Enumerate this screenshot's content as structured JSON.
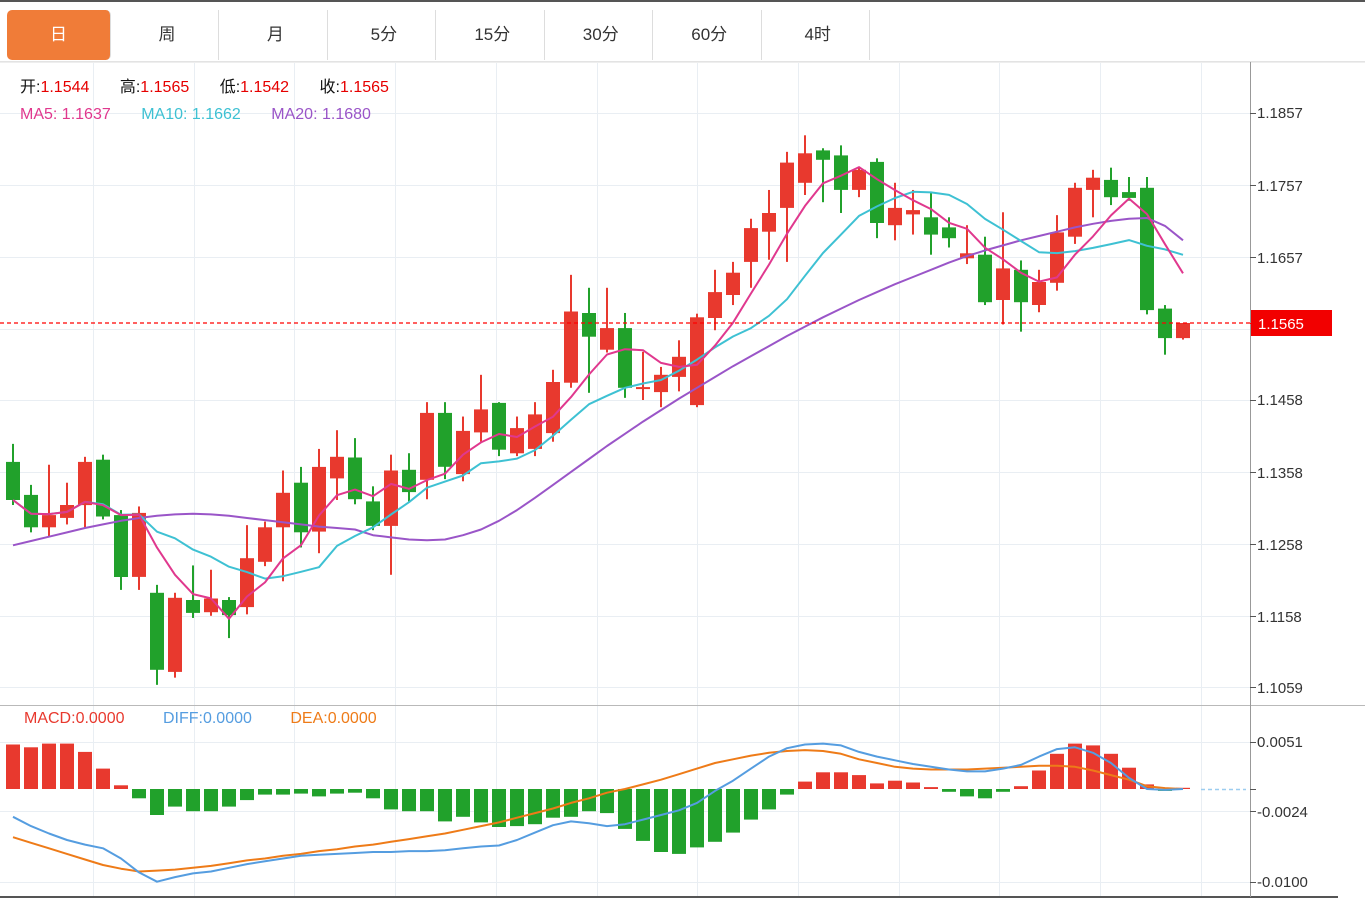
{
  "tabs": {
    "items": [
      {
        "label": "日",
        "active": true
      },
      {
        "label": "周",
        "active": false
      },
      {
        "label": "月",
        "active": false
      },
      {
        "label": "5分",
        "active": false
      },
      {
        "label": "15分",
        "active": false
      },
      {
        "label": "30分",
        "active": false
      },
      {
        "label": "60分",
        "active": false
      },
      {
        "label": "4时",
        "active": false
      }
    ]
  },
  "main_chart": {
    "legend_ohlc": {
      "open_label": "开:",
      "open": "1.1544",
      "high_label": "高:",
      "high": "1.1565",
      "low_label": "低:",
      "low": "1.1542",
      "close_label": "收:",
      "close": "1.1565"
    },
    "legend_ma": {
      "ma5_label": "MA5:",
      "ma5": "1.1637",
      "ma10_label": "MA10:",
      "ma10": "1.1662",
      "ma20_label": "MA20:",
      "ma20": "1.1680"
    },
    "y_axis": {
      "labels": [
        "1.1857",
        "1.1757",
        "1.1657",
        "1.1458",
        "1.1358",
        "1.1258",
        "1.1158",
        "1.1059"
      ],
      "current_price_label": "1.1565"
    }
  },
  "macd_panel": {
    "legend": {
      "macd_label": "MACD:",
      "macd": "0.0000",
      "diff_label": "DIFF:",
      "diff": "0.0000",
      "dea_label": "DEA:",
      "dea": "0.0000"
    },
    "y_axis": {
      "labels": [
        "0.0051",
        "-0.0024",
        "-0.0100"
      ]
    }
  },
  "colors": {
    "up": "#e8392e",
    "down": "#21a12b",
    "ma5": "#e0388e",
    "ma10": "#3ec1d3",
    "ma20": "#9a55c8",
    "diff": "#559de0",
    "dea": "#ee7b18",
    "accent": "#f07c38",
    "value_red": "#e60000",
    "dashed_price": "#ff0000",
    "badge": "#f20000",
    "grid": "#e9eef3",
    "axis": "#999999",
    "text": "#333333",
    "tail_dash": "#9ccdf0"
  },
  "chart_data": [
    {
      "type": "candlestick",
      "title": "",
      "xlabel": "",
      "ylabel": "",
      "ylim": [
        1.103,
        1.19
      ],
      "grid": true,
      "y_tick_values": [
        1.1857,
        1.1757,
        1.1657,
        1.1458,
        1.1358,
        1.1258,
        1.1158,
        1.1059
      ],
      "y_grid_values": [
        1.1857,
        1.1757,
        1.1657,
        1.1557,
        1.1458,
        1.1358,
        1.1258,
        1.1158,
        1.1059
      ],
      "current_price": 1.1565,
      "ma5_value": 1.1637,
      "ma10_value": 1.1662,
      "ma20_value": 1.168,
      "ohlc": [
        [
          1.1372,
          1.1397,
          1.1312,
          1.1319
        ],
        [
          1.1326,
          1.134,
          1.1274,
          1.1281
        ],
        [
          1.1281,
          1.1368,
          1.1267,
          1.1298
        ],
        [
          1.1294,
          1.1343,
          1.1285,
          1.1312
        ],
        [
          1.1312,
          1.1379,
          1.1281,
          1.1372
        ],
        [
          1.1375,
          1.1382,
          1.1292,
          1.1296
        ],
        [
          1.1298,
          1.1305,
          1.1194,
          1.1212
        ],
        [
          1.1212,
          1.131,
          1.1194,
          1.1301
        ],
        [
          1.119,
          1.1201,
          1.1062,
          1.1083
        ],
        [
          1.108,
          1.119,
          1.1072,
          1.1183
        ],
        [
          1.118,
          1.1228,
          1.1155,
          1.1162
        ],
        [
          1.1163,
          1.1222,
          1.1158,
          1.1182
        ],
        [
          1.118,
          1.1184,
          1.1127,
          1.1159
        ],
        [
          1.117,
          1.1284,
          1.116,
          1.1238
        ],
        [
          1.1233,
          1.1289,
          1.1227,
          1.1281
        ],
        [
          1.1281,
          1.136,
          1.1206,
          1.1329
        ],
        [
          1.1343,
          1.1365,
          1.1253,
          1.1274
        ],
        [
          1.1275,
          1.139,
          1.1245,
          1.1365
        ],
        [
          1.1349,
          1.1416,
          1.1319,
          1.1379
        ],
        [
          1.1378,
          1.1405,
          1.1313,
          1.132
        ],
        [
          1.1317,
          1.1338,
          1.1277,
          1.1283
        ],
        [
          1.1283,
          1.1382,
          1.1215,
          1.136
        ],
        [
          1.1361,
          1.1384,
          1.1317,
          1.133
        ],
        [
          1.1347,
          1.1455,
          1.132,
          1.144
        ],
        [
          1.144,
          1.1455,
          1.1348,
          1.1365
        ],
        [
          1.1355,
          1.1435,
          1.1345,
          1.1415
        ],
        [
          1.1413,
          1.1493,
          1.14,
          1.1445
        ],
        [
          1.1454,
          1.1455,
          1.138,
          1.1389
        ],
        [
          1.1384,
          1.1435,
          1.138,
          1.1419
        ],
        [
          1.139,
          1.1455,
          1.138,
          1.1438
        ],
        [
          1.1412,
          1.15,
          1.14,
          1.1483
        ],
        [
          1.1482,
          1.1632,
          1.1475,
          1.1581
        ],
        [
          1.1579,
          1.1614,
          1.1468,
          1.1546
        ],
        [
          1.1528,
          1.1614,
          1.1524,
          1.1558
        ],
        [
          1.1558,
          1.1579,
          1.1461,
          1.1475
        ],
        [
          1.1474,
          1.1525,
          1.1458,
          1.1476
        ],
        [
          1.1469,
          1.1504,
          1.1448,
          1.1493
        ],
        [
          1.149,
          1.1541,
          1.147,
          1.1518
        ],
        [
          1.1451,
          1.1578,
          1.1448,
          1.1573
        ],
        [
          1.1572,
          1.1639,
          1.1555,
          1.1608
        ],
        [
          1.1604,
          1.165,
          1.159,
          1.1635
        ],
        [
          1.165,
          1.171,
          1.1614,
          1.1697
        ],
        [
          1.1692,
          1.175,
          1.1653,
          1.1718
        ],
        [
          1.1725,
          1.1803,
          1.165,
          1.1788
        ],
        [
          1.176,
          1.1826,
          1.1743,
          1.1801
        ],
        [
          1.1805,
          1.1808,
          1.1733,
          1.1792
        ],
        [
          1.1798,
          1.1812,
          1.1718,
          1.175
        ],
        [
          1.175,
          1.1782,
          1.174,
          1.1778
        ],
        [
          1.1789,
          1.1794,
          1.1683,
          1.1704
        ],
        [
          1.1701,
          1.176,
          1.168,
          1.1725
        ],
        [
          1.1716,
          1.175,
          1.1688,
          1.1722
        ],
        [
          1.1712,
          1.1747,
          1.166,
          1.1688
        ],
        [
          1.1698,
          1.1712,
          1.167,
          1.1683
        ],
        [
          1.1655,
          1.1701,
          1.1647,
          1.1662
        ],
        [
          1.166,
          1.1685,
          1.159,
          1.1594
        ],
        [
          1.1597,
          1.1719,
          1.1563,
          1.1641
        ],
        [
          1.1639,
          1.1652,
          1.1553,
          1.1594
        ],
        [
          1.159,
          1.1639,
          1.158,
          1.1622
        ],
        [
          1.1621,
          1.1715,
          1.161,
          1.1691
        ],
        [
          1.1685,
          1.176,
          1.1675,
          1.1753
        ],
        [
          1.175,
          1.1778,
          1.1712,
          1.1767
        ],
        [
          1.1764,
          1.1781,
          1.1729,
          1.174
        ],
        [
          1.1747,
          1.1768,
          1.1735,
          1.1739
        ],
        [
          1.1753,
          1.1768,
          1.1577,
          1.1583
        ],
        [
          1.1585,
          1.159,
          1.1521,
          1.1544
        ],
        [
          1.1544,
          1.1565,
          1.1542,
          1.1565
        ]
      ],
      "ma20_line": [
        1.1256,
        1.1262,
        1.1268,
        1.1274,
        1.128,
        1.1285,
        1.129,
        1.1294,
        1.1297,
        1.1299,
        1.13,
        1.1299,
        1.1297,
        1.1294,
        1.1291,
        1.1288,
        1.1285,
        1.1282,
        1.128,
        1.1278,
        1.127,
        1.1267,
        1.1264,
        1.1263,
        1.1264,
        1.127,
        1.1278,
        1.129,
        1.1305,
        1.1322,
        1.134,
        1.1358,
        1.1376,
        1.1394,
        1.1411,
        1.1428,
        1.1444,
        1.146,
        1.1475,
        1.149,
        1.1505,
        1.1519,
        1.1533,
        1.1547,
        1.156,
        1.1573,
        1.1585,
        1.1597,
        1.1608,
        1.1619,
        1.1629,
        1.1639,
        1.1649,
        1.1658,
        1.1666,
        1.1673,
        1.168,
        1.1686,
        1.1692,
        1.1698,
        1.1703,
        1.1707,
        1.171,
        1.1711,
        1.17,
        1.168
      ]
    },
    {
      "type": "bar",
      "title": "MACD",
      "y_tick_values": [
        0.0051,
        -0.0024,
        -0.01
      ],
      "zero_value": 0.0,
      "hist": [
        0.0048,
        0.0045,
        0.0049,
        0.0049,
        0.004,
        0.0022,
        0.0004,
        -0.001,
        -0.0028,
        -0.0019,
        -0.0024,
        -0.0024,
        -0.0019,
        -0.0012,
        -0.0006,
        -0.0006,
        -0.0005,
        -0.0008,
        -0.0005,
        -0.0004,
        -0.001,
        -0.0022,
        -0.0024,
        -0.0024,
        -0.0035,
        -0.003,
        -0.0036,
        -0.0041,
        -0.004,
        -0.0038,
        -0.0031,
        -0.003,
        -0.0024,
        -0.0026,
        -0.0043,
        -0.0056,
        -0.0068,
        -0.007,
        -0.0063,
        -0.0057,
        -0.0047,
        -0.0033,
        -0.0022,
        -0.0006,
        0.0008,
        0.0018,
        0.0018,
        0.0015,
        0.0006,
        0.0009,
        0.0007,
        0.0002,
        -0.0003,
        -0.0008,
        -0.001,
        -0.0003,
        0.0003,
        0.002,
        0.0038,
        0.0049,
        0.0047,
        0.0038,
        0.0023,
        0.0005,
        -0.0002,
        0.0
      ],
      "diff_line": [
        -0.003,
        -0.004,
        -0.0048,
        -0.0055,
        -0.006,
        -0.0064,
        -0.0075,
        -0.009,
        -0.01,
        -0.0095,
        -0.0091,
        -0.0089,
        -0.0085,
        -0.0081,
        -0.0078,
        -0.0075,
        -0.0072,
        -0.0071,
        -0.007,
        -0.0069,
        -0.0068,
        -0.0068,
        -0.0067,
        -0.0067,
        -0.0066,
        -0.0064,
        -0.0062,
        -0.0061,
        -0.0055,
        -0.0047,
        -0.0039,
        -0.0035,
        -0.0037,
        -0.004,
        -0.0038,
        -0.0033,
        -0.0028,
        -0.0023,
        -0.0015,
        -0.0002,
        0.0009,
        0.0022,
        0.0035,
        0.0044,
        0.0048,
        0.0049,
        0.0047,
        0.004,
        0.0035,
        0.0031,
        0.0027,
        0.0024,
        0.0021,
        0.0019,
        0.0019,
        0.0022,
        0.0026,
        0.0035,
        0.0043,
        0.0045,
        0.0039,
        0.0028,
        0.0012,
        0.0,
        -0.0001,
        0.0
      ],
      "dea_line": [
        -0.0052,
        -0.0058,
        -0.0064,
        -0.007,
        -0.0076,
        -0.0082,
        -0.0086,
        -0.0089,
        -0.0088,
        -0.0087,
        -0.0085,
        -0.0083,
        -0.008,
        -0.0077,
        -0.0075,
        -0.0072,
        -0.007,
        -0.0067,
        -0.0065,
        -0.0062,
        -0.006,
        -0.0057,
        -0.0054,
        -0.0051,
        -0.0048,
        -0.0044,
        -0.004,
        -0.0036,
        -0.0031,
        -0.0026,
        -0.0021,
        -0.0015,
        -0.001,
        -0.0004,
        0.0,
        0.0005,
        0.001,
        0.0016,
        0.0022,
        0.0028,
        0.0032,
        0.0036,
        0.0039,
        0.0041,
        0.0042,
        0.0041,
        0.0038,
        0.0032,
        0.0028,
        0.0024,
        0.0022,
        0.0021,
        0.0021,
        0.0021,
        0.0022,
        0.0023,
        0.0024,
        0.0025,
        0.0025,
        0.0024,
        0.002,
        0.0015,
        0.001,
        0.0003,
        0.0001,
        0.0
      ]
    }
  ]
}
